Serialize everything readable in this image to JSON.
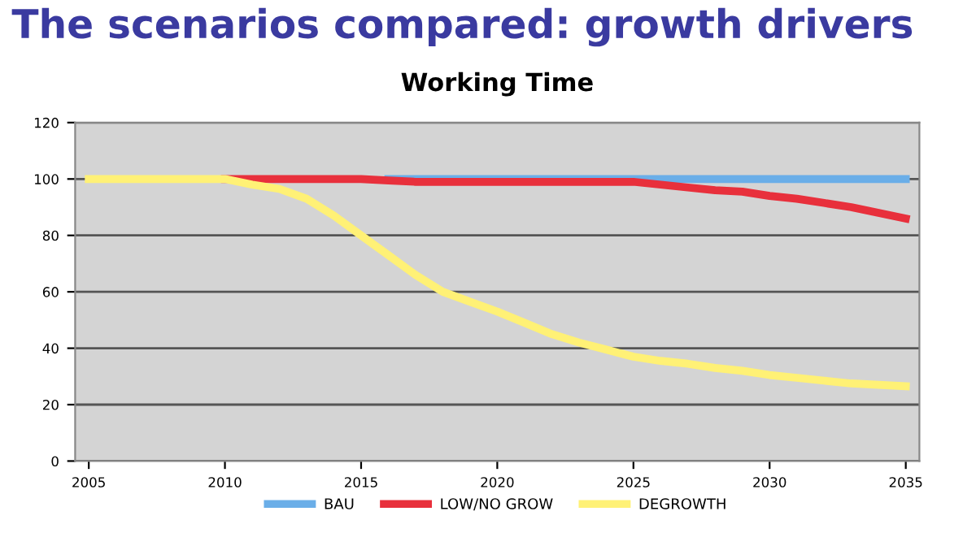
{
  "chart_data": {
    "type": "line",
    "title": "The scenarios compared: growth drivers",
    "subtitle": "Working Time",
    "x": [
      2005,
      2006,
      2007,
      2008,
      2009,
      2010,
      2011,
      2012,
      2013,
      2014,
      2015,
      2016,
      2017,
      2018,
      2019,
      2020,
      2021,
      2022,
      2023,
      2024,
      2025,
      2026,
      2027,
      2028,
      2029,
      2030,
      2031,
      2032,
      2033,
      2034,
      2035
    ],
    "series": [
      {
        "name": "BAU",
        "color": "#6aaee8",
        "values": [
          null,
          null,
          null,
          null,
          null,
          null,
          null,
          null,
          null,
          null,
          null,
          100,
          100,
          100,
          100,
          100,
          100,
          100,
          100,
          100,
          100,
          100,
          100,
          100,
          100,
          100,
          100,
          100,
          100,
          100,
          100
        ]
      },
      {
        "name": "LOW/NO GROW",
        "color": "#e8303c",
        "values": [
          null,
          null,
          null,
          null,
          null,
          100,
          100,
          100,
          100,
          100,
          100,
          99.5,
          99,
          99,
          99,
          99,
          99,
          99,
          99,
          99,
          99,
          98,
          97,
          96,
          95.5,
          94,
          93,
          91.5,
          90,
          88,
          86
        ]
      },
      {
        "name": "DEGROWTH",
        "color": "#fff176",
        "values": [
          100,
          100,
          100,
          100,
          100,
          100,
          98,
          96.5,
          93,
          87,
          80,
          73,
          66,
          60,
          56.5,
          53,
          49,
          45,
          42,
          39.5,
          37,
          35.5,
          34.5,
          33,
          32,
          30.5,
          29.5,
          28.5,
          27.5,
          27,
          26.5
        ]
      }
    ],
    "xlim": [
      2004.5,
      2035.5
    ],
    "xticks": [
      2005,
      2010,
      2015,
      2020,
      2025,
      2030,
      2035
    ],
    "ylim": [
      0,
      120
    ],
    "yticks": [
      0,
      20,
      40,
      60,
      80,
      100,
      120
    ],
    "grid": "y",
    "legend": "bottom",
    "line_style": "solid",
    "marker": "none"
  }
}
